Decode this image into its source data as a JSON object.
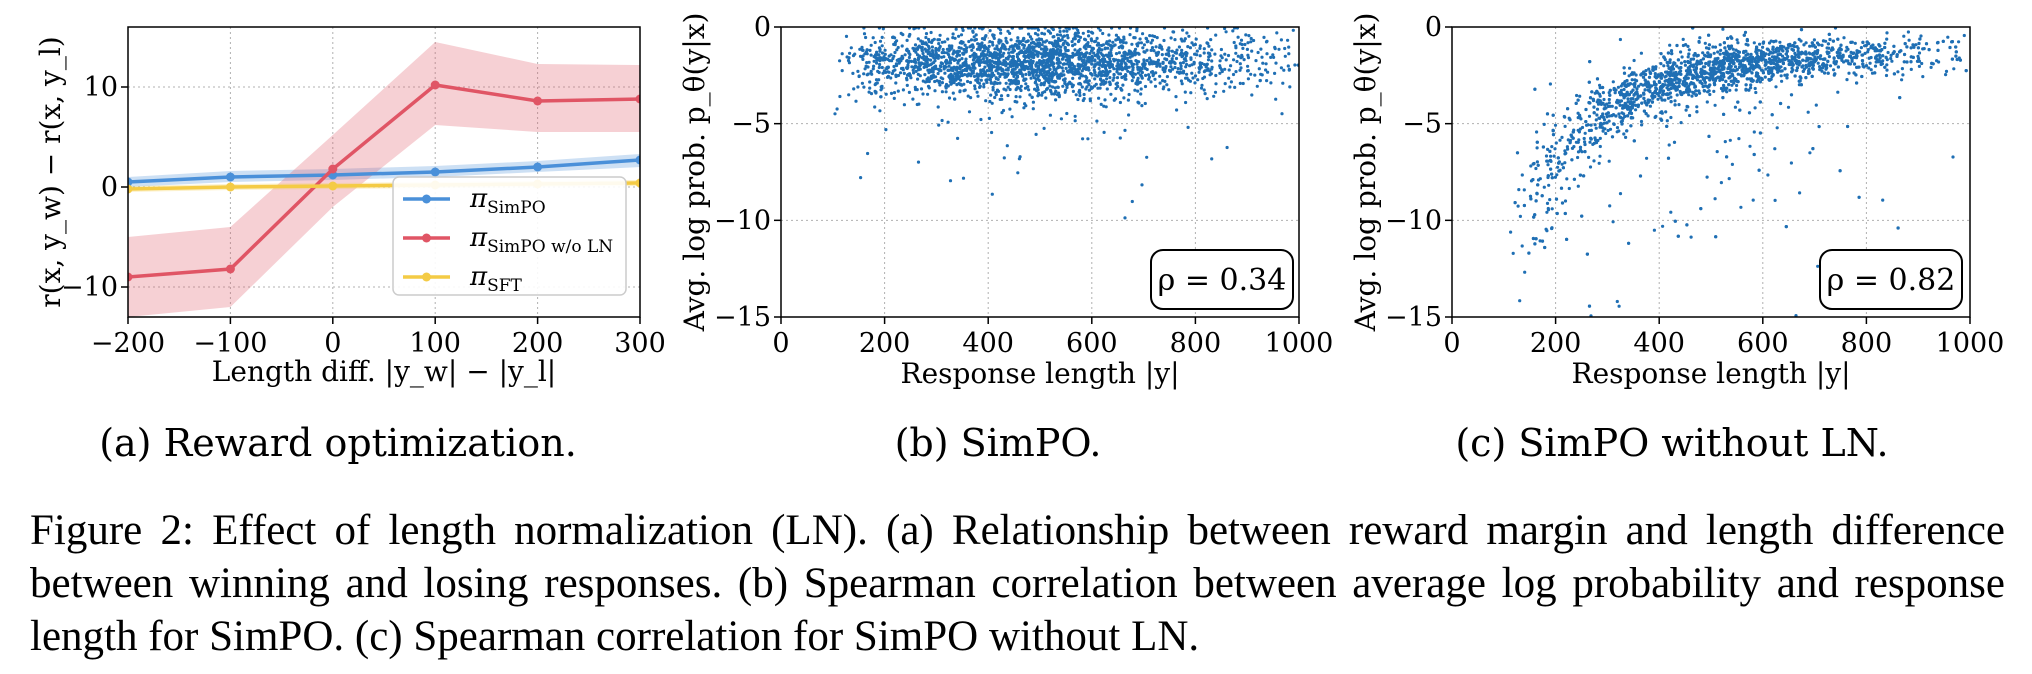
{
  "chart_data": [
    {
      "type": "line",
      "xlabel": "Length diff. |y_w| − |y_l|",
      "ylabel": "r(x, y_w) − r(x, y_l)",
      "xlim": [
        -200,
        300
      ],
      "ylim": [
        -13,
        16
      ],
      "xticks": [
        "−200",
        "−100",
        "0",
        "100",
        "200",
        "300"
      ],
      "xtick_values": [
        -200,
        -100,
        0,
        100,
        200,
        300
      ],
      "yticks": [
        "−10",
        "0",
        "10"
      ],
      "ytick_values": [
        -10,
        0,
        10
      ],
      "x": [
        -200,
        -100,
        0,
        100,
        200,
        300
      ],
      "grid": true,
      "legend_position": "lower-right",
      "series": [
        {
          "name": "π_SimPO",
          "color": "#4a90d9",
          "values": [
            0.5,
            1.0,
            1.2,
            1.5,
            2.0,
            2.7
          ],
          "band_low": [
            0.0,
            0.5,
            0.7,
            1.0,
            1.5,
            2.0
          ],
          "band_high": [
            1.0,
            1.6,
            1.8,
            2.1,
            2.6,
            3.3
          ]
        },
        {
          "name": "π_SimPO w/o LN",
          "color": "#e05565",
          "values": [
            -9.0,
            -8.2,
            1.8,
            10.2,
            8.6,
            8.8
          ],
          "band_low": [
            -13.0,
            -12.0,
            -2.0,
            6.2,
            5.5,
            5.5
          ],
          "band_high": [
            -5.0,
            -4.0,
            5.2,
            14.5,
            12.3,
            12.2
          ]
        },
        {
          "name": "π_SFT",
          "color": "#f4cb45",
          "values": [
            -0.2,
            0.0,
            0.1,
            0.2,
            0.3,
            0.4
          ],
          "band_low": [
            -0.5,
            -0.3,
            -0.2,
            -0.1,
            0.0,
            0.1
          ],
          "band_high": [
            0.1,
            0.3,
            0.4,
            0.5,
            0.6,
            0.7
          ]
        }
      ]
    },
    {
      "type": "scatter",
      "xlabel": "Response length |y|",
      "ylabel": "Avg. log prob. p_θ(y|x)",
      "xlim": [
        0,
        1000
      ],
      "ylim": [
        -15,
        0
      ],
      "xticks": [
        "0",
        "200",
        "400",
        "600",
        "800",
        "1000"
      ],
      "xtick_values": [
        0,
        200,
        400,
        600,
        800,
        1000
      ],
      "yticks": [
        "−15",
        "−10",
        "−5",
        "0"
      ],
      "ytick_values": [
        -15,
        -10,
        -5,
        0
      ],
      "grid": true,
      "annotation": "ρ = 0.34",
      "points_summary": {
        "x_range": [
          50,
          1000
        ],
        "mean_y": -1.9,
        "spread_y": 0.8
      }
    },
    {
      "type": "scatter",
      "xlabel": "Response length |y|",
      "ylabel": "Avg. log prob. p_θ(y|x)",
      "xlim": [
        0,
        1000
      ],
      "ylim": [
        -15,
        0
      ],
      "xticks": [
        "0",
        "200",
        "400",
        "600",
        "800",
        "1000"
      ],
      "xtick_values": [
        0,
        200,
        400,
        600,
        800,
        1000
      ],
      "yticks": [
        "−15",
        "−10",
        "−5",
        "0"
      ],
      "ytick_values": [
        -15,
        -10,
        -5,
        0
      ],
      "grid": true,
      "annotation": "ρ = 0.82",
      "points_summary": {
        "x_range": [
          60,
          1000
        ],
        "trend": "rising from about −13 near |y|=100 to about −1.5 at |y|=1000"
      }
    }
  ],
  "subcaptions": [
    "(a) Reward optimization.",
    "(b) SimPO.",
    "(c) SimPO without LN."
  ],
  "caption": "Figure 2: Effect of length normalization (LN). (a) Relationship between reward margin and length difference between winning and losing responses. (b) Spearman correlation between average log probability and response length for SimPO. (c) Spearman correlation for SimPO without LN.",
  "colors": {
    "scatter": "#1f6fb4"
  }
}
